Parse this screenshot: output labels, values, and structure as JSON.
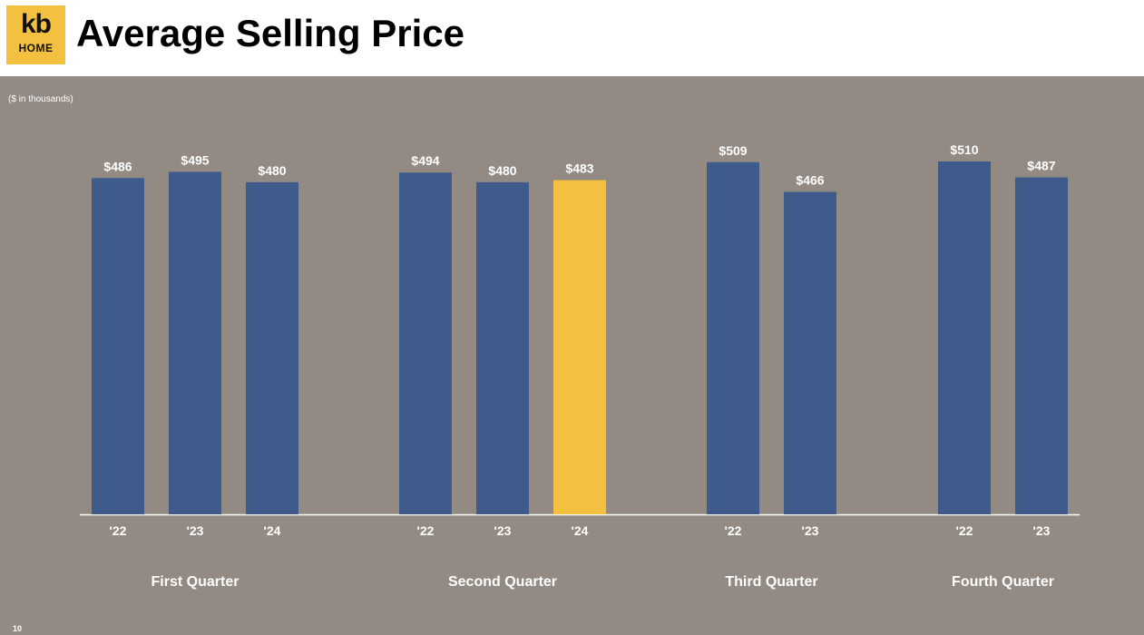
{
  "header": {
    "title": "Average Selling Price",
    "logo_top": "kb",
    "logo_bottom": "HOME"
  },
  "unit_note": "($ in thousands)",
  "page_number": "10",
  "colors": {
    "bar": "#3e5b8c",
    "highlight": "#f3c13f",
    "background": "#928a83",
    "axis": "#ffffff"
  },
  "chart_data": {
    "type": "bar",
    "title": "Average Selling Price",
    "ylabel": "",
    "ylim": [
      0,
      510
    ],
    "groups": [
      {
        "name": "First Quarter",
        "bars": [
          {
            "label": "'22",
            "value": 486,
            "text": "$486"
          },
          {
            "label": "'23",
            "value": 495,
            "text": "$495"
          },
          {
            "label": "'24",
            "value": 480,
            "text": "$480"
          }
        ]
      },
      {
        "name": "Second Quarter",
        "bars": [
          {
            "label": "'22",
            "value": 494,
            "text": "$494"
          },
          {
            "label": "'23",
            "value": 480,
            "text": "$480"
          },
          {
            "label": "'24",
            "value": 483,
            "text": "$483",
            "highlight": true
          }
        ]
      },
      {
        "name": "Third Quarter",
        "bars": [
          {
            "label": "'22",
            "value": 509,
            "text": "$509"
          },
          {
            "label": "'23",
            "value": 466,
            "text": "$466"
          }
        ]
      },
      {
        "name": "Fourth Quarter",
        "bars": [
          {
            "label": "'22",
            "value": 510,
            "text": "$510"
          },
          {
            "label": "'23",
            "value": 487,
            "text": "$487"
          }
        ]
      }
    ]
  }
}
